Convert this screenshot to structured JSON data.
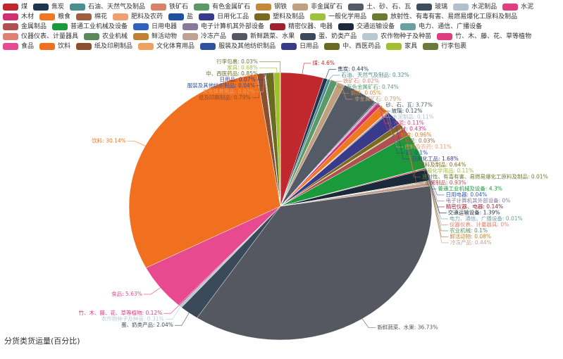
{
  "chart_data": {
    "type": "pie",
    "title": "分货类货运量(百分比)",
    "categories": [
      "煤",
      "焦炭",
      "石油、天然气及制品",
      "铁矿石",
      "有色金属矿石",
      "钢铁",
      "非金属矿石",
      "土、砂、石、瓦",
      "玻璃",
      "水泥制品",
      "水泥",
      "木材",
      "粮食",
      "棉花",
      "肥料及农药",
      "盐",
      "日用化工品",
      "塑料及制品",
      "一般化学用品",
      "放射性、有毒有害、易燃易爆化工原料及制品",
      "金属制品",
      "普通工业机械及设备",
      "日用电器",
      "电子计算机其外部设备",
      "精密仪器、电器",
      "交通运输设备",
      "电力、通信、广播设备",
      "仪器仪表、计量器具",
      "农业机械",
      "鲜活动物",
      "冷冻产品",
      "新鲜蔬菜、水果",
      "蛋、奶类产品",
      "农作物种子及种苗",
      "竹、木、藤、花、草等植物",
      "食品",
      "饮料",
      "纸及印刷制品",
      "文化体育用品",
      "服装及其他纺织制品",
      "日用品",
      "中、西医药品",
      "家具",
      "行李包裹"
    ],
    "values": [
      4.6,
      0.44,
      0.32,
      0.02,
      0.74,
      0.05,
      0.79,
      3.77,
      0.12,
      0.11,
      0.11,
      0.43,
      0.96,
      0.03,
      0.11,
      0.1,
      1.68,
      0.64,
      0.11,
      0.01,
      0.93,
      4.3,
      0.04,
      0,
      0.14,
      1.39,
      0.01,
      0,
      0.1,
      0.08,
      0.44,
      36.73,
      2.04,
      0.31,
      0.12,
      5.63,
      30.14,
      0.79,
      0.02,
      0.04,
      0.07,
      0.85,
      0.68,
      0.03
    ],
    "value_labels": [
      "煤: 4.6%",
      "焦炭: 0.44%",
      "石油、天然气及制品: 0.32%",
      "铁矿石: 0.02%",
      "有色金属矿石: 0.74%",
      "钢铁: 0.05%",
      "非金属矿石: 0.79%",
      "土、砂、石、瓦: 3.77%",
      "玻璃: 0.12%",
      "水泥制品: 0.11%",
      "水泥: 0.11%",
      "木材: 0.43%",
      "粮食: 0.96%",
      "棉花: 0.03%",
      "肥料及农药: 0.11%",
      "盐: 0.1%",
      "日用化工品: 1.68%",
      "塑料及制品: 0.64%",
      "一般化学用品: 0.11%",
      "放射性、有毒有害、易燃易爆化工原料及制品: 0.01%",
      "金属制品: 0.93%",
      "普通工业机械及设备: 4.3%",
      "日用电器: 0.04%",
      "电子计算机其外部设备: 0%",
      "精密仪器、电器: 0.14%",
      "交通运输设备: 1.39%",
      "电力、通信、广播设备: 0.01%",
      "仪器仪表、计量器具: 0%",
      "农业机械: 0.1%",
      "鲜活动物: 0.08%",
      "冷冻产品: 0.44%",
      "新鲜蔬菜、水果: 36.73%",
      "蛋、奶类产品: 2.04%",
      "农作物种子及种苗: 0.31%",
      "竹、木、藤、花、草等植物: 0.12%",
      "食品: 5.63%",
      "饮料: 30.14%",
      "纸及印刷制品: 0.79%",
      "文化体育用品: 0.02%",
      "服装及其他纺织制品: 0.04%",
      "日用品: 0.07%",
      "中、西医药品: 0.85%",
      "家具: 0.68%",
      "行李包裹: 0.03%"
    ],
    "colors": [
      "#c0282d",
      "#1f3550",
      "#4a8f8f",
      "#d9826a",
      "#5a9a6a",
      "#c8883a",
      "#c0a080",
      "#555b66",
      "#3d4d5d",
      "#b0c0cc",
      "#e04080",
      "#d03070",
      "#f07820",
      "#a06040",
      "#f0a070",
      "#2050a0",
      "#3a3a8a",
      "#7a6a20",
      "#a0c040",
      "#6a7a30",
      "#b05050",
      "#1a9a3a",
      "#3060c0",
      "#8a7a9a",
      "#a02030",
      "#1a2a3a",
      "#6aa0a0",
      "#e08070",
      "#5a8a5a",
      "#c08030",
      "#c0a090",
      "#555860",
      "#3a4a5a",
      "#b8c8d0",
      "#e03a80",
      "#e84a90",
      "#f07020",
      "#8a5030",
      "#f0a060",
      "#3050a0",
      "#3a3a8a",
      "#6a6a20",
      "#a0c030",
      "#6a7a3a"
    ]
  }
}
